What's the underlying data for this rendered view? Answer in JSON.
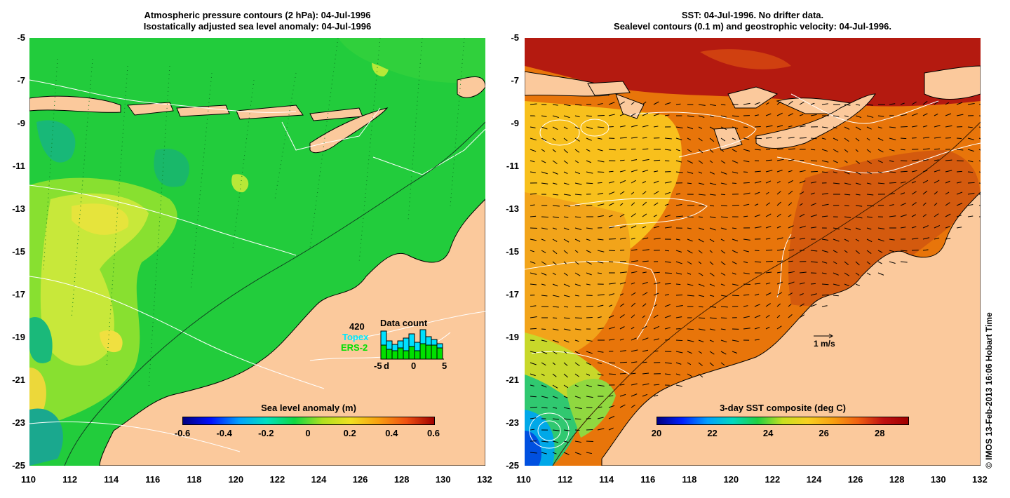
{
  "left_panel": {
    "title_line1": "Atmospheric pressure contours (2 hPa): 04-Jul-1996",
    "title_line2": "Isostatically adjusted sea level anomaly: 04-Jul-1996",
    "colorbar": {
      "title": "Sea level anomaly (m)",
      "labels": [
        "-0.6",
        "-0.4",
        "-0.2",
        "0",
        "0.2",
        "0.4",
        "0.6"
      ]
    },
    "data_count": {
      "title": "Data count",
      "max_label": "420",
      "topex_label": "Topex",
      "ers_label": "ERS-2",
      "axis_labels": [
        "-5",
        "d",
        "0",
        "5"
      ],
      "topex_color": "#00e0ff",
      "ers_color": "#00e000"
    }
  },
  "right_panel": {
    "title_line1": "SST: 04-Jul-1996. No drifter data.",
    "title_line2": "Sealevel contours (0.1 m) and geostrophic velocity: 04-Jul-1996.",
    "colorbar": {
      "title": "3-day SST composite (deg C)",
      "labels": [
        "20",
        "22",
        "24",
        "26",
        "28"
      ]
    },
    "scale_label": "1 m/s"
  },
  "axes": {
    "x_ticks": [
      "110",
      "112",
      "114",
      "116",
      "118",
      "120",
      "122",
      "124",
      "126",
      "128",
      "130",
      "132"
    ],
    "y_ticks": [
      "-5",
      "-7",
      "-9",
      "-11",
      "-13",
      "-15",
      "-17",
      "-19",
      "-21",
      "-23",
      "-25"
    ],
    "lon_range": [
      110,
      132
    ],
    "lat_range": [
      -25,
      -5
    ]
  },
  "copyright": "© IMOS 13-Feb-2013 16:06 Hobart Time",
  "colors": {
    "land": "#fbc99c",
    "sla_base": "#20d040",
    "sst_base": "#e8750a"
  }
}
